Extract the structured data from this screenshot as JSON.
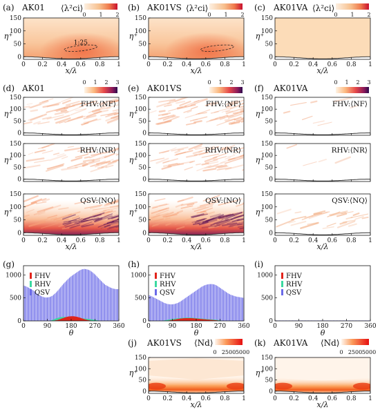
{
  "colors": {
    "warm_low": "#fdf0e2",
    "warm_mid": "#f5a26a",
    "warm_high": "#d9262b",
    "purple_high": "#3c0e5a",
    "fhv": "#e2231a",
    "rhv": "#3ad9a0",
    "qsv": "#6a6ae8",
    "axis": "#111111"
  },
  "panel_labels": {
    "a": "(a)",
    "b": "(b)",
    "c": "(c)",
    "d": "(d)",
    "e": "(e)",
    "f": "(f)",
    "g": "(g)",
    "h": "(h)",
    "i": "(i)",
    "j": "(j)",
    "k": "(k)"
  },
  "cases": {
    "ak01": "AK01",
    "ak01vs": "AK01VS",
    "ak01va": "AK01VA"
  },
  "colorbars": {
    "lambda_label": "⟨λ²ci⟩",
    "lambda_ticks": [
      "0",
      "1",
      "2"
    ],
    "n_ticks": [
      "0",
      "1",
      "2",
      "3"
    ],
    "nd_label": "⟨Nd⟩",
    "nd_ticks": [
      "0",
      "2500",
      "5000"
    ]
  },
  "annotations": {
    "slope_label": "1:25"
  },
  "row_tags": {
    "fhv": "FHV:⟨NF⟩",
    "rhv": "RHV:⟨NR⟩",
    "qsv": "QSV:⟨NQ⟩"
  },
  "axes": {
    "x_label": "x/λ",
    "y_label": "η⁺",
    "theta_label": "θ",
    "x_ticks": [
      "0",
      "0.2",
      "0.4",
      "0.6",
      "0.8",
      "1"
    ],
    "y_ticks": [
      "0",
      "50",
      "100",
      "150"
    ],
    "theta_ticks": [
      "0",
      "90",
      "180",
      "270",
      "360"
    ],
    "count_ticks": [
      "0",
      "500",
      "1000"
    ]
  },
  "legend": [
    "FHV",
    "RHV",
    "QSV"
  ],
  "chart_data": [
    {
      "panel": "(a)",
      "type": "heatmap",
      "case": "AK01",
      "quantity": "⟨λ²ci⟩",
      "xlim": [
        0,
        1
      ],
      "ylim": [
        -10,
        150
      ],
      "colorbar_range": [
        0,
        2
      ]
    },
    {
      "panel": "(b)",
      "type": "heatmap",
      "case": "AK01VS",
      "quantity": "⟨λ²ci⟩",
      "xlim": [
        0,
        1
      ],
      "ylim": [
        -10,
        150
      ],
      "colorbar_range": [
        0,
        2
      ]
    },
    {
      "panel": "(c)",
      "type": "heatmap",
      "case": "AK01VA",
      "quantity": "⟨λ²ci⟩",
      "xlim": [
        0,
        1
      ],
      "ylim": [
        -10,
        150
      ],
      "colorbar_range": [
        0,
        2
      ]
    },
    {
      "panel": "(d)",
      "type": "heatmap",
      "case": "AK01",
      "quantities": [
        "⟨NF⟩",
        "⟨NR⟩",
        "⟨NQ⟩"
      ],
      "xlim": [
        0,
        1
      ],
      "ylim": [
        -10,
        150
      ],
      "colorbar_range": [
        0,
        3
      ]
    },
    {
      "panel": "(e)",
      "type": "heatmap",
      "case": "AK01VS",
      "quantities": [
        "⟨NF⟩",
        "⟨NR⟩",
        "⟨NQ⟩"
      ],
      "xlim": [
        0,
        1
      ],
      "ylim": [
        -10,
        150
      ],
      "colorbar_range": [
        0,
        3
      ]
    },
    {
      "panel": "(f)",
      "type": "heatmap",
      "case": "AK01VA",
      "quantities": [
        "⟨NF⟩",
        "⟨NR⟩",
        "⟨NQ⟩"
      ],
      "xlim": [
        0,
        1
      ],
      "ylim": [
        -10,
        150
      ],
      "colorbar_range": [
        0,
        3
      ]
    },
    {
      "panel": "(g)",
      "type": "bar",
      "xlabel": "θ",
      "xlim": [
        0,
        360
      ],
      "ylim": [
        0,
        1200
      ],
      "theta": [
        0,
        10,
        20,
        30,
        40,
        50,
        60,
        70,
        80,
        90,
        100,
        110,
        120,
        130,
        140,
        150,
        160,
        170,
        180,
        190,
        200,
        210,
        220,
        230,
        240,
        250,
        260,
        270,
        280,
        290,
        300,
        310,
        320,
        330,
        340,
        350,
        360
      ],
      "series": [
        {
          "name": "FHV",
          "values": [
            0,
            0,
            0,
            0,
            0,
            0,
            0,
            0,
            0,
            0,
            0,
            0,
            10,
            20,
            40,
            60,
            80,
            95,
            100,
            100,
            90,
            75,
            55,
            35,
            20,
            10,
            0,
            0,
            0,
            0,
            0,
            0,
            0,
            0,
            0,
            0,
            0
          ]
        },
        {
          "name": "RHV",
          "values": [
            0,
            0,
            0,
            0,
            0,
            0,
            0,
            0,
            0,
            0,
            0,
            20,
            45,
            65,
            80,
            85,
            85,
            80,
            75,
            70,
            65,
            60,
            55,
            50,
            45,
            40,
            30,
            20,
            10,
            0,
            0,
            0,
            0,
            0,
            0,
            0,
            0
          ]
        },
        {
          "name": "QSV",
          "values": [
            770,
            750,
            720,
            690,
            650,
            600,
            560,
            530,
            510,
            510,
            520,
            550,
            600,
            660,
            730,
            800,
            860,
            920,
            970,
            1010,
            1050,
            1090,
            1120,
            1130,
            1120,
            1100,
            1060,
            1010,
            950,
            890,
            830,
            780,
            750,
            720,
            700,
            690,
            690
          ]
        }
      ]
    },
    {
      "panel": "(h)",
      "type": "bar",
      "xlabel": "θ",
      "xlim": [
        0,
        360
      ],
      "ylim": [
        0,
        1200
      ],
      "theta": [
        0,
        10,
        20,
        30,
        40,
        50,
        60,
        70,
        80,
        90,
        100,
        110,
        120,
        130,
        140,
        150,
        160,
        170,
        180,
        190,
        200,
        210,
        220,
        230,
        240,
        250,
        260,
        270,
        280,
        290,
        300,
        310,
        320,
        330,
        340,
        350,
        360
      ],
      "series": [
        {
          "name": "FHV",
          "values": [
            0,
            0,
            0,
            0,
            0,
            0,
            0,
            0,
            10,
            20,
            30,
            40,
            50,
            55,
            60,
            60,
            60,
            55,
            50,
            45,
            40,
            35,
            30,
            25,
            20,
            15,
            10,
            0,
            0,
            0,
            0,
            0,
            0,
            0,
            0,
            0,
            0
          ]
        },
        {
          "name": "RHV",
          "values": [
            0,
            0,
            0,
            0,
            0,
            0,
            10,
            20,
            30,
            40,
            50,
            55,
            60,
            65,
            70,
            70,
            70,
            65,
            60,
            55,
            50,
            45,
            40,
            35,
            30,
            25,
            20,
            10,
            0,
            0,
            0,
            0,
            0,
            0,
            0,
            0,
            0
          ]
        },
        {
          "name": "QSV",
          "values": [
            560,
            540,
            510,
            480,
            450,
            420,
            390,
            370,
            360,
            360,
            370,
            390,
            420,
            460,
            500,
            540,
            580,
            620,
            660,
            700,
            740,
            770,
            790,
            800,
            800,
            790,
            760,
            720,
            680,
            640,
            600,
            570,
            550,
            530,
            520,
            510,
            500
          ]
        }
      ]
    },
    {
      "panel": "(i)",
      "type": "bar",
      "xlabel": "θ",
      "xlim": [
        0,
        360
      ],
      "ylim": [
        0,
        1200
      ],
      "theta": [
        0,
        10,
        20,
        30,
        40,
        50,
        60,
        70,
        80,
        90,
        100,
        110,
        120,
        130,
        140,
        150,
        160,
        170,
        180,
        190,
        200,
        210,
        220,
        230,
        240,
        250,
        260,
        270,
        280,
        290,
        300,
        310,
        320,
        330,
        340,
        350,
        360
      ],
      "series": [
        {
          "name": "FHV",
          "values": [
            0,
            0,
            0,
            0,
            0,
            0,
            0,
            0,
            0,
            0,
            0,
            0,
            0,
            0,
            0,
            0,
            0,
            0,
            0,
            0,
            0,
            0,
            0,
            0,
            0,
            0,
            0,
            0,
            0,
            0,
            0,
            0,
            0,
            0,
            0,
            0,
            0
          ]
        },
        {
          "name": "RHV",
          "values": [
            0,
            0,
            0,
            0,
            0,
            0,
            0,
            0,
            0,
            0,
            0,
            0,
            0,
            0,
            0,
            0,
            0,
            0,
            0,
            0,
            0,
            0,
            0,
            0,
            0,
            0,
            0,
            0,
            0,
            0,
            0,
            0,
            0,
            0,
            0,
            0,
            0
          ]
        },
        {
          "name": "QSV",
          "values": [
            10,
            10,
            10,
            10,
            10,
            10,
            10,
            10,
            10,
            10,
            10,
            10,
            10,
            10,
            10,
            10,
            10,
            10,
            10,
            10,
            10,
            10,
            10,
            10,
            10,
            10,
            10,
            10,
            10,
            10,
            10,
            10,
            10,
            10,
            10,
            10,
            10
          ]
        }
      ]
    },
    {
      "panel": "(j)",
      "type": "heatmap",
      "case": "AK01VS",
      "quantity": "⟨Nd⟩",
      "xlim": [
        0,
        1
      ],
      "ylim": [
        -10,
        150
      ],
      "colorbar_range": [
        0,
        5000
      ]
    },
    {
      "panel": "(k)",
      "type": "heatmap",
      "case": "AK01VA",
      "quantity": "⟨Nd⟩",
      "xlim": [
        0,
        1
      ],
      "ylim": [
        -10,
        150
      ],
      "colorbar_range": [
        0,
        5000
      ]
    }
  ]
}
